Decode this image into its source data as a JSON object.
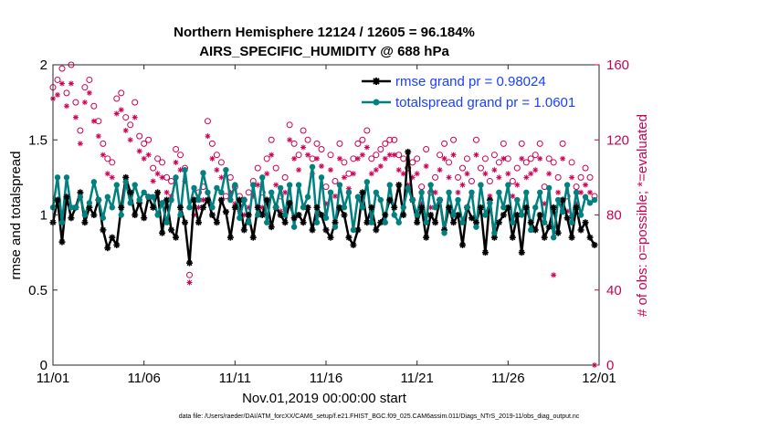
{
  "chart_data": {
    "type": "line",
    "title": "Northern Hemisphere 12124 / 12605 = 96.184%",
    "subtitle": "AIRS_SPECIFIC_HUMIDITY @ 688 hPa",
    "xlabel": "Nov.01,2019 00:00:00 start",
    "ylabel": "rmse and totalspread",
    "ylabel_right": "# of obs: o=possible; *=evaluated",
    "footnote": "data file: /Users/raeder/DAI/ATM_forcXX/CAM6_setup/f.e21.FHIST_BGC.f09_025.CAM6assim.011/Diags_NTrS_2019-11/obs_diag_output.nc",
    "xlim": [
      0,
      30
    ],
    "ylim": [
      0,
      2
    ],
    "ylim_right": [
      0,
      160
    ],
    "x_ticks": [
      0,
      5,
      10,
      15,
      20,
      25,
      30
    ],
    "x_tick_labels": [
      "11/01",
      "11/06",
      "11/11",
      "11/16",
      "11/21",
      "11/26",
      "12/01"
    ],
    "y_ticks": [
      0,
      0.5,
      1,
      1.5,
      2
    ],
    "y_tick_labels": [
      "0",
      "0.5",
      "1",
      "1.5",
      "2"
    ],
    "y_ticks_right": [
      0,
      40,
      80,
      120,
      160
    ],
    "y_tick_labels_right": [
      "0",
      "40",
      "80",
      "120",
      "160"
    ],
    "legend_position": "top-right",
    "colors": {
      "rmse": "#000000",
      "spread": "#00807f",
      "obs": "#cc0055"
    },
    "x": [
      0,
      0.25,
      0.5,
      0.75,
      1,
      1.25,
      1.5,
      1.75,
      2,
      2.25,
      2.5,
      2.75,
      3,
      3.25,
      3.5,
      3.75,
      4,
      4.25,
      4.5,
      4.75,
      5,
      5.25,
      5.5,
      5.75,
      6,
      6.25,
      6.5,
      6.75,
      7,
      7.25,
      7.5,
      7.75,
      8,
      8.25,
      8.5,
      8.75,
      9,
      9.25,
      9.5,
      9.75,
      10,
      10.25,
      10.5,
      10.75,
      11,
      11.25,
      11.5,
      11.75,
      12,
      12.25,
      12.5,
      12.75,
      13,
      13.25,
      13.5,
      13.75,
      14,
      14.25,
      14.5,
      14.75,
      15,
      15.25,
      15.5,
      15.75,
      16,
      16.25,
      16.5,
      16.75,
      17,
      17.25,
      17.5,
      17.75,
      18,
      18.25,
      18.5,
      18.75,
      19,
      19.25,
      19.5,
      19.75,
      20,
      20.25,
      20.5,
      20.75,
      21,
      21.25,
      21.5,
      21.75,
      22,
      22.25,
      22.5,
      22.75,
      23,
      23.25,
      23.5,
      23.75,
      24,
      24.25,
      24.5,
      24.75,
      25,
      25.25,
      25.5,
      25.75,
      26,
      26.25,
      26.5,
      26.75,
      27,
      27.25,
      27.5,
      27.75,
      28,
      28.25,
      28.5,
      28.75,
      29,
      29.25,
      29.5,
      29.75
    ],
    "series": [
      {
        "name": "rmse grand pr = 0.98024",
        "values": [
          0.95,
          1.1,
          0.82,
          1.12,
          0.98,
          1.05,
          1.15,
          0.95,
          1.05,
          1.0,
          1.1,
          0.9,
          0.78,
          0.85,
          0.8,
          1.05,
          1.25,
          1.15,
          1.0,
          1.08,
          0.98,
          1.12,
          1.05,
          1.15,
          0.88,
          1.1,
          0.9,
          0.85,
          1.05,
          0.95,
          0.68,
          1.1,
          0.95,
          1.05,
          1.1,
          1.0,
          0.95,
          1.1,
          1.02,
          0.85,
          1.05,
          1.1,
          0.9,
          1.0,
          0.85,
          1.05,
          1.0,
          1.1,
          0.92,
          1.05,
          1.0,
          0.95,
          1.08,
          0.98,
          1.0,
          0.95,
          1.05,
          0.9,
          1.05,
          1.0,
          0.9,
          0.85,
          0.95,
          1.05,
          1.0,
          0.85,
          0.8,
          0.9,
          1.15,
          0.95,
          1.05,
          0.9,
          0.95,
          1.0,
          1.1,
          1.05,
          1.2,
          1.0,
          1.42,
          1.1,
          0.95,
          1.05,
          0.85,
          1.0,
          0.95,
          1.1,
          0.9,
          1.05,
          0.95,
          1.0,
          0.8,
          1.05,
          0.98,
          0.95,
          1.05,
          0.75,
          1.1,
          0.85,
          0.95,
          1.0,
          1.05,
          0.85,
          1.0,
          0.75,
          1.05,
          0.95,
          0.9,
          1.0,
          0.85,
          0.92,
          1.05,
          0.88,
          1.1,
          0.98,
          0.85,
          1.05,
          0.9,
          0.95,
          0.85,
          0.8
        ]
      },
      {
        "name": "totalspread grand pr = 1.0601",
        "values": [
          1.05,
          1.25,
          0.95,
          1.25,
          1.05,
          1.05,
          1.12,
          1.0,
          1.08,
          1.22,
          1.1,
          0.98,
          1.12,
          1.05,
          1.2,
          1.0,
          1.22,
          1.08,
          1.2,
          1.1,
          1.15,
          1.12,
          1.12,
          1.0,
          1.08,
          0.95,
          1.1,
          1.25,
          1.0,
          1.3,
          1.05,
          1.18,
          1.1,
          1.28,
          1.15,
          1.05,
          1.18,
          1.15,
          1.3,
          1.1,
          1.2,
          0.98,
          1.1,
          0.95,
          1.2,
          1.0,
          1.25,
          0.95,
          1.15,
          1.05,
          1.18,
          1.0,
          1.2,
          0.92,
          1.2,
          1.05,
          1.12,
          1.32,
          0.95,
          1.25,
          0.98,
          1.15,
          0.92,
          1.2,
          1.05,
          1.15,
          0.9,
          1.12,
          1.05,
          1.22,
          0.95,
          1.15,
          1.1,
          0.95,
          1.2,
          1.0,
          0.95,
          1.05,
          1.18,
          1.1,
          1.0,
          1.15,
          0.95,
          1.2,
          1.05,
          1.1,
          0.88,
          1.15,
          1.0,
          1.1,
          0.95,
          1.05,
          1.15,
          0.92,
          1.2,
          1.0,
          1.08,
          0.88,
          1.15,
          1.05,
          1.2,
          0.95,
          1.1,
          1.0,
          1.15,
          0.9,
          1.05,
          1.15,
          0.95,
          1.18,
          0.85,
          1.1,
          1.02,
          1.2,
          0.95,
          1.15,
          1.0,
          1.12,
          1.08,
          1.1
        ],
        "axis": "left"
      },
      {
        "name": "possible",
        "marker": "circle",
        "axis": "right",
        "values": [
          148,
          152,
          158,
          145,
          160,
          140,
          125,
          148,
          152,
          138,
          130,
          118,
          110,
          108,
          142,
          145,
          132,
          128,
          140,
          122,
          118,
          120,
          105,
          110,
          108,
          100,
          98,
          115,
          112,
          105,
          48,
          88,
          92,
          95,
          130,
          118,
          112,
          108,
          90,
          100,
          95,
          90,
          88,
          92,
          98,
          105,
          92,
          110,
          120,
          105,
          90,
          100,
          128,
          118,
          112,
          125,
          120,
          110,
          118,
          115,
          95,
          112,
          98,
          118,
          108,
          102,
          110,
          118,
          120,
          125,
          110,
          112,
          115,
          118,
          120,
          120,
          112,
          110,
          105,
          108,
          110,
          95,
          115,
          92,
          100,
          112,
          118,
          108,
          120,
          100,
          105,
          110,
          98,
          120,
          105,
          110,
          98,
          112,
          108,
          118,
          110,
          98,
          105,
          118,
          108,
          110,
          112,
          118,
          95,
          110,
          108,
          100,
          118,
          90,
          108,
          95,
          100,
          105,
          100,
          90
        ]
      },
      {
        "name": "evaluated",
        "marker": "star",
        "axis": "right",
        "values": [
          142,
          144,
          150,
          138,
          150,
          132,
          118,
          140,
          145,
          130,
          122,
          112,
          102,
          100,
          134,
          136,
          125,
          120,
          132,
          114,
          110,
          112,
          98,
          102,
          100,
          92,
          90,
          108,
          104,
          98,
          44,
          80,
          84,
          88,
          122,
          110,
          104,
          100,
          82,
          92,
          86,
          82,
          80,
          84,
          90,
          96,
          84,
          102,
          112,
          96,
          82,
          92,
          120,
          110,
          104,
          116,
          112,
          102,
          110,
          106,
          86,
          104,
          90,
          110,
          100,
          94,
          102,
          110,
          112,
          116,
          102,
          104,
          106,
          110,
          112,
          112,
          104,
          102,
          96,
          100,
          102,
          86,
          106,
          84,
          92,
          104,
          110,
          100,
          112,
          92,
          96,
          102,
          90,
          112,
          96,
          102,
          90,
          104,
          100,
          110,
          102,
          90,
          96,
          110,
          100,
          102,
          104,
          110,
          86,
          102,
          48,
          92,
          110,
          82,
          100,
          86,
          92,
          96,
          92,
          0
        ]
      }
    ]
  }
}
